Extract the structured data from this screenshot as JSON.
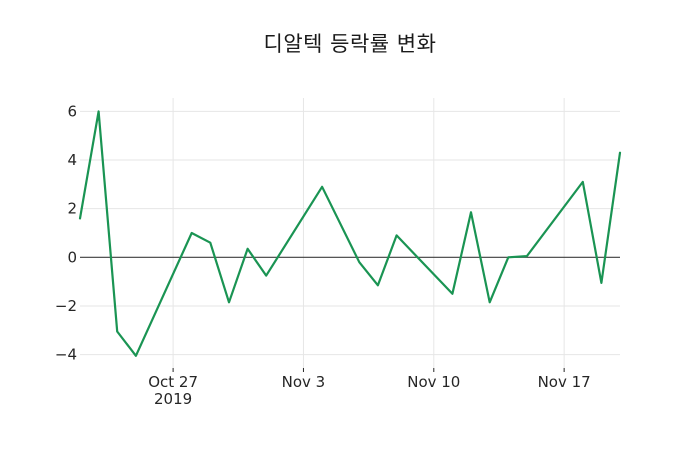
{
  "chart_data": {
    "type": "line",
    "title": "디알텍 등락률 변화",
    "xlabel": "",
    "ylabel": "",
    "xlim": [
      "2019-10-22",
      "2019-11-20"
    ],
    "ylim": [
      -4.55,
      6.55
    ],
    "grid": true,
    "legend": "none",
    "background_color": "#ffffff",
    "grid_color": "#e6e6e6",
    "zero_line_color": "#3d3d3d",
    "tick_text_color": "#262626",
    "x_ticks": [
      {
        "date": "2019-10-27",
        "label": "Oct 27",
        "sublabel": "2019"
      },
      {
        "date": "2019-11-03",
        "label": "Nov 3",
        "sublabel": ""
      },
      {
        "date": "2019-11-10",
        "label": "Nov 10",
        "sublabel": ""
      },
      {
        "date": "2019-11-17",
        "label": "Nov 17",
        "sublabel": ""
      }
    ],
    "y_ticks": [
      {
        "value": 6,
        "label": "6"
      },
      {
        "value": 4,
        "label": "4"
      },
      {
        "value": 2,
        "label": "2"
      },
      {
        "value": 0,
        "label": "0"
      },
      {
        "value": -2,
        "label": "−2"
      },
      {
        "value": -4,
        "label": "−4"
      }
    ],
    "series": [
      {
        "name": "등락률",
        "color": "#1a9453",
        "line_width": 2.2,
        "points": [
          [
            "2019-10-22",
            1.6
          ],
          [
            "2019-10-23",
            6.0
          ],
          [
            "2019-10-24",
            -3.05
          ],
          [
            "2019-10-25",
            -4.05
          ],
          [
            "2019-10-28",
            1.0
          ],
          [
            "2019-10-29",
            0.6
          ],
          [
            "2019-10-30",
            -1.85
          ],
          [
            "2019-10-31",
            0.35
          ],
          [
            "2019-11-01",
            -0.75
          ],
          [
            "2019-11-04",
            2.9
          ],
          [
            "2019-11-06",
            -0.2
          ],
          [
            "2019-11-07",
            -1.15
          ],
          [
            "2019-11-08",
            0.9
          ],
          [
            "2019-11-11",
            -1.5
          ],
          [
            "2019-11-12",
            1.85
          ],
          [
            "2019-11-13",
            -1.85
          ],
          [
            "2019-11-14",
            0.0
          ],
          [
            "2019-11-15",
            0.05
          ],
          [
            "2019-11-18",
            3.1
          ],
          [
            "2019-11-19",
            -1.05
          ],
          [
            "2019-11-20",
            4.3
          ]
        ]
      }
    ]
  }
}
